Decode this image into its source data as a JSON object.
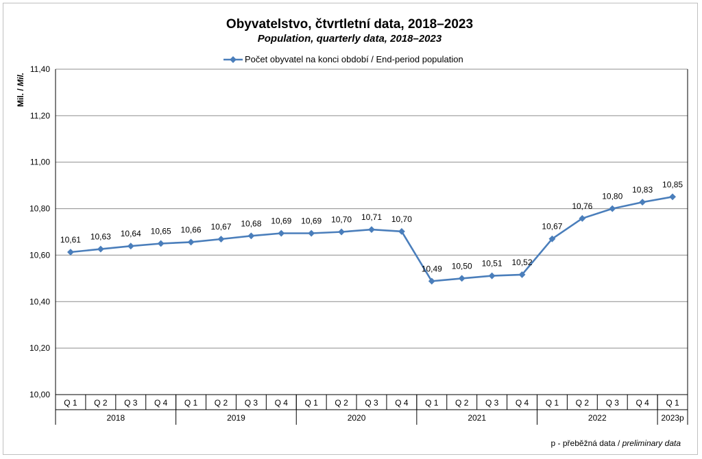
{
  "chart_data": {
    "type": "line",
    "title": "Obyvatelstvo, čtvrtletní data, 2018–2023",
    "subtitle": "Population, quarterly data, 2018–2023",
    "ylabel_cz": "Mil. /",
    "ylabel_en": "Mil.",
    "ylim": [
      10.0,
      11.4
    ],
    "yticks": [
      "10,00",
      "10,20",
      "10,40",
      "10,60",
      "10,80",
      "11,00",
      "11,20",
      "11,40"
    ],
    "ytick_values": [
      10.0,
      10.2,
      10.4,
      10.6,
      10.8,
      11.0,
      11.2,
      11.4
    ],
    "grid": true,
    "legend_position": "top-center",
    "categories": [
      "Q 1",
      "Q 2",
      "Q 3",
      "Q 4",
      "Q 1",
      "Q 2",
      "Q 3",
      "Q 4",
      "Q 1",
      "Q 2",
      "Q 3",
      "Q 4",
      "Q 1",
      "Q 2",
      "Q 3",
      "Q 4",
      "Q 1",
      "Q 2",
      "Q 3",
      "Q 4",
      "Q 1"
    ],
    "year_groups": [
      {
        "label": "2018",
        "count": 4
      },
      {
        "label": "2019",
        "count": 4
      },
      {
        "label": "2020",
        "count": 4
      },
      {
        "label": "2021",
        "count": 4
      },
      {
        "label": "2022",
        "count": 4
      },
      {
        "label": "2023p",
        "count": 1
      }
    ],
    "series": [
      {
        "name": "Počet obyvatel na konci období / End-period population",
        "color": "#4a7ebb",
        "values": [
          10.613,
          10.626,
          10.639,
          10.65,
          10.656,
          10.669,
          10.683,
          10.694,
          10.694,
          10.7,
          10.71,
          10.702,
          10.488,
          10.5,
          10.511,
          10.516,
          10.67,
          10.758,
          10.8,
          10.828,
          10.851
        ],
        "labels": [
          "10,61",
          "10,63",
          "10,64",
          "10,65",
          "10,66",
          "10,67",
          "10,68",
          "10,69",
          "10,69",
          "10,70",
          "10,71",
          "10,70",
          "10,49",
          "10,50",
          "10,51",
          "10,52",
          "10,67",
          "10,76",
          "10,80",
          "10,83",
          "10,85"
        ]
      }
    ],
    "footnote_cz": "p - přeběžná data /",
    "footnote_en": "preliminary data"
  }
}
